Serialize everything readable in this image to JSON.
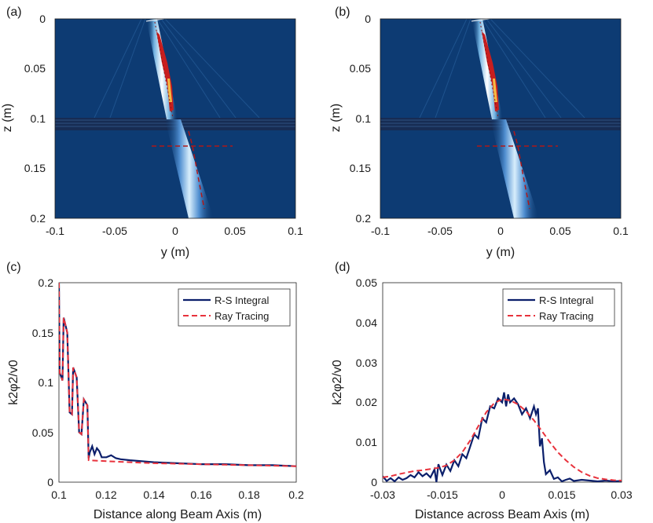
{
  "chart_data": [
    {
      "id": "a",
      "panel_label": "(a)",
      "type": "heatmap",
      "xlabel": "y (m)",
      "ylabel": "z (m)",
      "xlim": [
        -0.1,
        0.1
      ],
      "ylim": [
        0,
        0.2
      ],
      "xticks": [
        "-0.1",
        "-0.05",
        "0",
        "0.05",
        "0.1"
      ],
      "yticks": [
        "0",
        "0.05",
        "0.1",
        "0.15",
        "0.2"
      ],
      "beam_path": [
        [
          -0.025,
          0
        ],
        [
          0.0,
          0.1
        ],
        [
          0.015,
          0.13
        ],
        [
          0.025,
          0.19
        ]
      ],
      "interface_z": 0.1,
      "cross_line": {
        "z": 0.128,
        "x_range": [
          -0.018,
          0.05
        ]
      },
      "colors": {
        "background": "#0d3b73",
        "beam_core": "#c81e1e"
      }
    },
    {
      "id": "b",
      "panel_label": "(b)",
      "type": "heatmap",
      "xlabel": "y (m)",
      "ylabel": "z (m)",
      "xlim": [
        -0.1,
        0.1
      ],
      "ylim": [
        0,
        0.2
      ],
      "xticks": [
        "-0.1",
        "-0.05",
        "0",
        "0.05",
        "0.1"
      ],
      "yticks": [
        "0",
        "0.05",
        "0.1",
        "0.15",
        "0.2"
      ],
      "beam_path": [
        [
          -0.025,
          0
        ],
        [
          0.0,
          0.1
        ],
        [
          0.015,
          0.13
        ],
        [
          0.025,
          0.19
        ]
      ],
      "interface_z": 0.1,
      "cross_line": {
        "z": 0.128,
        "x_range": [
          -0.018,
          0.05
        ]
      },
      "colors": {
        "background": "#0d3b73",
        "beam_core": "#c81e1e"
      }
    },
    {
      "id": "c",
      "panel_label": "(c)",
      "type": "line",
      "xlabel": "Distance along Beam Axis (m)",
      "ylabel": "k2φ2/v0",
      "xlim": [
        0.1,
        0.2
      ],
      "ylim": [
        0,
        0.2
      ],
      "xticks": [
        "0.1",
        "0.12",
        "0.14",
        "0.16",
        "0.18",
        "0.2"
      ],
      "yticks": [
        "0",
        "0.05",
        "0.1",
        "0.15",
        "0.2"
      ],
      "legend": [
        "R-S Integral",
        "Ray Tracing"
      ],
      "series": [
        {
          "name": "R-S Integral",
          "color": "#0b1f6b",
          "points": [
            [
              0.1,
              0.2
            ],
            [
              0.1003,
              0.11
            ],
            [
              0.1015,
              0.102
            ],
            [
              0.102,
              0.165
            ],
            [
              0.1035,
              0.15
            ],
            [
              0.1045,
              0.07
            ],
            [
              0.1055,
              0.068
            ],
            [
              0.106,
              0.115
            ],
            [
              0.1075,
              0.105
            ],
            [
              0.1085,
              0.05
            ],
            [
              0.1095,
              0.048
            ],
            [
              0.1105,
              0.083
            ],
            [
              0.112,
              0.077
            ],
            [
              0.1125,
              0.024
            ],
            [
              0.113,
              0.03
            ],
            [
              0.114,
              0.036
            ],
            [
              0.115,
              0.028
            ],
            [
              0.116,
              0.034
            ],
            [
              0.117,
              0.031
            ],
            [
              0.118,
              0.025
            ],
            [
              0.12,
              0.025
            ],
            [
              0.122,
              0.027
            ],
            [
              0.124,
              0.024
            ],
            [
              0.126,
              0.023
            ],
            [
              0.13,
              0.022
            ],
            [
              0.135,
              0.021
            ],
            [
              0.14,
              0.02
            ],
            [
              0.15,
              0.019
            ],
            [
              0.16,
              0.018
            ],
            [
              0.17,
              0.018
            ],
            [
              0.18,
              0.017
            ],
            [
              0.19,
              0.017
            ],
            [
              0.2,
              0.016
            ]
          ]
        },
        {
          "name": "Ray Tracing",
          "color": "#e8323c",
          "points": [
            [
              0.1,
              0.2
            ],
            [
              0.1003,
              0.11
            ],
            [
              0.1015,
              0.102
            ],
            [
              0.102,
              0.165
            ],
            [
              0.1035,
              0.15
            ],
            [
              0.1045,
              0.07
            ],
            [
              0.1055,
              0.068
            ],
            [
              0.106,
              0.115
            ],
            [
              0.1075,
              0.105
            ],
            [
              0.1085,
              0.05
            ],
            [
              0.1095,
              0.048
            ],
            [
              0.1105,
              0.083
            ],
            [
              0.112,
              0.077
            ],
            [
              0.1125,
              0.022
            ],
            [
              0.12,
              0.021
            ],
            [
              0.13,
              0.02
            ],
            [
              0.14,
              0.019
            ],
            [
              0.15,
              0.0185
            ],
            [
              0.16,
              0.018
            ],
            [
              0.17,
              0.0175
            ],
            [
              0.18,
              0.017
            ],
            [
              0.19,
              0.0165
            ],
            [
              0.2,
              0.016
            ]
          ]
        }
      ]
    },
    {
      "id": "d",
      "panel_label": "(d)",
      "type": "line",
      "xlabel": "Distance across Beam Axis (m)",
      "ylabel": "k2φ2/v0",
      "xlim": [
        -0.03,
        0.03
      ],
      "ylim": [
        0,
        0.05
      ],
      "xticks": [
        "-0.03",
        "-0.015",
        "0",
        "0.015",
        "0.03"
      ],
      "yticks": [
        "0",
        "0.01",
        "0.02",
        "0.03",
        "0.04",
        "0.05"
      ],
      "legend": [
        "R-S Integral",
        "Ray Tracing"
      ],
      "series": [
        {
          "name": "R-S Integral",
          "color": "#0b1f6b",
          "points": [
            [
              -0.03,
              0.0015
            ],
            [
              -0.029,
              0.0003
            ],
            [
              -0.028,
              0.001
            ],
            [
              -0.027,
              0.0002
            ],
            [
              -0.026,
              0.0012
            ],
            [
              -0.025,
              0.0006
            ],
            [
              -0.024,
              0.001
            ],
            [
              -0.023,
              0.0018
            ],
            [
              -0.022,
              0.0012
            ],
            [
              -0.021,
              0.0025
            ],
            [
              -0.02,
              0.0015
            ],
            [
              -0.019,
              0.0022
            ],
            [
              -0.018,
              0.0012
            ],
            [
              -0.017,
              0.0032
            ],
            [
              -0.0165,
              0.0
            ],
            [
              -0.016,
              0.0045
            ],
            [
              -0.015,
              0.0018
            ],
            [
              -0.014,
              0.0044
            ],
            [
              -0.013,
              0.0028
            ],
            [
              -0.012,
              0.0055
            ],
            [
              -0.011,
              0.004
            ],
            [
              -0.01,
              0.007
            ],
            [
              -0.009,
              0.006
            ],
            [
              -0.008,
              0.009
            ],
            [
              -0.007,
              0.012
            ],
            [
              -0.006,
              0.011
            ],
            [
              -0.005,
              0.016
            ],
            [
              -0.004,
              0.015
            ],
            [
              -0.003,
              0.019
            ],
            [
              -0.002,
              0.0185
            ],
            [
              -0.001,
              0.021
            ],
            [
              0.0,
              0.02
            ],
            [
              0.0005,
              0.0225
            ],
            [
              0.001,
              0.019
            ],
            [
              0.0015,
              0.022
            ],
            [
              0.002,
              0.02
            ],
            [
              0.003,
              0.021
            ],
            [
              0.004,
              0.0195
            ],
            [
              0.005,
              0.017
            ],
            [
              0.006,
              0.0185
            ],
            [
              0.007,
              0.016
            ],
            [
              0.008,
              0.019
            ],
            [
              0.0085,
              0.017
            ],
            [
              0.009,
              0.0185
            ],
            [
              0.0095,
              0.009
            ],
            [
              0.01,
              0.011
            ],
            [
              0.0105,
              0.005
            ],
            [
              0.011,
              0.002
            ],
            [
              0.012,
              0.003
            ],
            [
              0.013,
              0.0008
            ],
            [
              0.014,
              0.0012
            ],
            [
              0.015,
              0.0002
            ],
            [
              0.016,
              0.0006
            ],
            [
              0.017,
              0.0009
            ],
            [
              0.018,
              0.0003
            ],
            [
              0.02,
              0.0006
            ],
            [
              0.022,
              0.0004
            ],
            [
              0.024,
              0.0002
            ],
            [
              0.026,
              0.0004
            ],
            [
              0.028,
              0.0002
            ],
            [
              0.03,
              0.0003
            ]
          ]
        },
        {
          "name": "Ray Tracing",
          "color": "#e8323c",
          "points": [
            [
              -0.03,
              0.0012
            ],
            [
              -0.028,
              0.0015
            ],
            [
              -0.026,
              0.002
            ],
            [
              -0.024,
              0.0024
            ],
            [
              -0.022,
              0.0028
            ],
            [
              -0.02,
              0.003
            ],
            [
              -0.018,
              0.0033
            ],
            [
              -0.016,
              0.0036
            ],
            [
              -0.014,
              0.0042
            ],
            [
              -0.012,
              0.0055
            ],
            [
              -0.01,
              0.0075
            ],
            [
              -0.008,
              0.0105
            ],
            [
              -0.006,
              0.014
            ],
            [
              -0.004,
              0.0175
            ],
            [
              -0.002,
              0.0198
            ],
            [
              0.0,
              0.0208
            ],
            [
              0.002,
              0.0205
            ],
            [
              0.004,
              0.0195
            ],
            [
              0.006,
              0.0178
            ],
            [
              0.008,
              0.0155
            ],
            [
              0.01,
              0.0128
            ],
            [
              0.012,
              0.01
            ],
            [
              0.014,
              0.0075
            ],
            [
              0.016,
              0.0055
            ],
            [
              0.018,
              0.0038
            ],
            [
              0.02,
              0.0025
            ],
            [
              0.022,
              0.0016
            ],
            [
              0.024,
              0.001
            ],
            [
              0.026,
              0.0007
            ],
            [
              0.028,
              0.0005
            ],
            [
              0.03,
              0.0004
            ]
          ]
        }
      ]
    }
  ]
}
